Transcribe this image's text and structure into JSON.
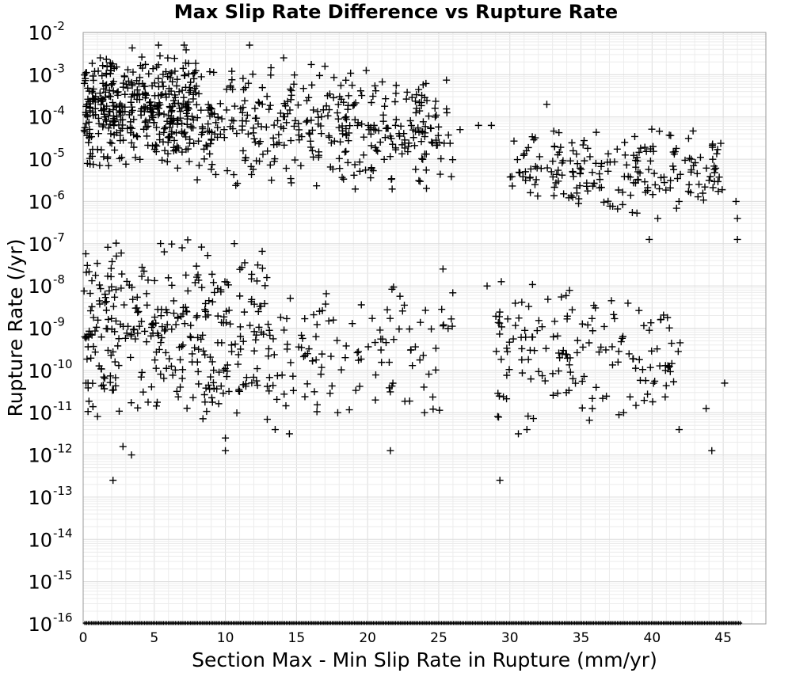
{
  "chart_data": {
    "type": "scatter",
    "title": "Max Slip Rate Difference vs Rupture Rate",
    "xlabel": "Section Max - Min Slip Rate in Rupture (mm/yr)",
    "ylabel": "Rupture Rate (/yr)",
    "xlim": [
      0,
      48
    ],
    "ylim": [
      1e-16,
      0.01
    ],
    "yscale": "log",
    "grid": true,
    "marker": "+",
    "xticks": [
      "0",
      "5",
      "10",
      "15",
      "20",
      "25",
      "30",
      "35",
      "40",
      "45"
    ],
    "yticks": [
      {
        "base": "10",
        "exp": "-2"
      },
      {
        "base": "10",
        "exp": "-3"
      },
      {
        "base": "10",
        "exp": "-4"
      },
      {
        "base": "10",
        "exp": "-5"
      },
      {
        "base": "10",
        "exp": "-6"
      },
      {
        "base": "10",
        "exp": "-7"
      },
      {
        "base": "10",
        "exp": "-8"
      },
      {
        "base": "10",
        "exp": "-9"
      },
      {
        "base": "10",
        "exp": "-10"
      },
      {
        "base": "10",
        "exp": "-11"
      },
      {
        "base": "10",
        "exp": "-12"
      },
      {
        "base": "10",
        "exp": "-13"
      },
      {
        "base": "10",
        "exp": "-14"
      },
      {
        "base": "10",
        "exp": "-15"
      },
      {
        "base": "10",
        "exp": "-16"
      }
    ],
    "clusters": [
      {
        "x": [
          0,
          8
        ],
        "log10_y": [
          -5.3,
          -2.3
        ],
        "count": 420
      },
      {
        "x": [
          8,
          18
        ],
        "log10_y": [
          -5.8,
          -2.6
        ],
        "count": 200
      },
      {
        "x": [
          18,
          26
        ],
        "log10_y": [
          -5.8,
          -2.9
        ],
        "count": 170
      },
      {
        "x": [
          30,
          45
        ],
        "log10_y": [
          -6.4,
          -4.2
        ],
        "count": 200
      },
      {
        "x": [
          0,
          13
        ],
        "log10_y": [
          -11.4,
          -6.7
        ],
        "count": 330
      },
      {
        "x": [
          13,
          26
        ],
        "log10_y": [
          -11.3,
          -7.7
        ],
        "count": 120
      },
      {
        "x": [
          29,
          42
        ],
        "log10_y": [
          -11.5,
          -7.7
        ],
        "count": 150
      }
    ],
    "points": [
      [
        0.3,
        -5.1
      ],
      [
        1.2,
        -2.6
      ],
      [
        1.7,
        -2.0
      ],
      [
        3.9,
        -2.0
      ],
      [
        5.3,
        -2.3
      ],
      [
        7.1,
        -2.3
      ],
      [
        11.7,
        -2.3
      ],
      [
        14.1,
        -2.6
      ],
      [
        17.0,
        -2.8
      ],
      [
        19.9,
        -2.9
      ],
      [
        23.4,
        -3.9
      ],
      [
        26.5,
        -4.3
      ],
      [
        27.8,
        -4.2
      ],
      [
        28.7,
        -4.2
      ],
      [
        32.6,
        -3.7
      ],
      [
        45.9,
        -6.0
      ],
      [
        46.0,
        -6.4
      ],
      [
        46.0,
        -6.9
      ],
      [
        39.8,
        -6.9
      ],
      [
        40.4,
        -6.4
      ],
      [
        25.3,
        -7.6
      ],
      [
        28.4,
        -8.0
      ],
      [
        29.4,
        -7.9
      ],
      [
        35.1,
        -8.9
      ],
      [
        40.6,
        -8.8
      ],
      [
        45.1,
        -10.3
      ],
      [
        43.8,
        -10.9
      ],
      [
        44.2,
        -11.9
      ],
      [
        29.3,
        -12.6
      ],
      [
        24.0,
        -11.0
      ],
      [
        21.6,
        -11.9
      ],
      [
        17.9,
        -11.0
      ],
      [
        2.1,
        -12.6
      ],
      [
        2.8,
        -11.8
      ],
      [
        3.4,
        -12.0
      ],
      [
        10.0,
        -11.6
      ],
      [
        10.0,
        -11.9
      ],
      [
        14.5,
        -11.5
      ],
      [
        13.5,
        -11.4
      ],
      [
        38.0,
        -11.0
      ],
      [
        41.9,
        -11.4
      ],
      [
        30.6,
        -11.5
      ],
      [
        31.2,
        -11.4
      ],
      [
        35.8,
        -10.9
      ]
    ],
    "floor_points": {
      "log10_y": -16,
      "x_min": 0,
      "x_max": 46.3
    }
  }
}
